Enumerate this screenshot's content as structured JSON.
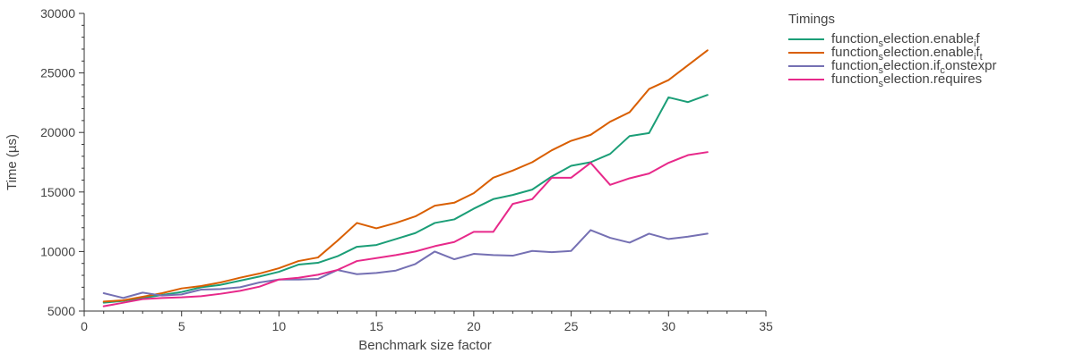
{
  "chart_data": {
    "type": "line",
    "title": "",
    "xlabel": "Benchmark size factor",
    "ylabel": "Time (µs)",
    "xlim": [
      0,
      35
    ],
    "ylim": [
      5000,
      30000
    ],
    "xticks": [
      0,
      5,
      10,
      15,
      20,
      25,
      30,
      35
    ],
    "yticks": [
      5000,
      10000,
      15000,
      20000,
      25000,
      30000
    ],
    "grid": false,
    "legend": {
      "title": "Timings",
      "placement": "outside-right"
    },
    "x": [
      1,
      2,
      3,
      4,
      5,
      6,
      7,
      8,
      9,
      10,
      11,
      12,
      13,
      14,
      15,
      16,
      17,
      18,
      19,
      20,
      21,
      22,
      23,
      24,
      25,
      26,
      27,
      28,
      29,
      30,
      31,
      32
    ],
    "series": [
      {
        "name": "function_selection.enable_if",
        "legend_parts": {
          "base": "function",
          "sub1": "s",
          "mid": "election.enable",
          "sub2": "i",
          "tail": "f"
        },
        "color": "#1b9e77",
        "values": [
          5700,
          5850,
          6100,
          6350,
          6600,
          7000,
          7200,
          7550,
          7900,
          8300,
          8900,
          9050,
          9600,
          10400,
          10550,
          11050,
          11550,
          12400,
          12700,
          13600,
          14400,
          14750,
          15200,
          16300,
          17200,
          17500,
          18200,
          19700,
          19950,
          22950,
          22550,
          23150
        ]
      },
      {
        "name": "function_selection.enable_if_t",
        "legend_parts": {
          "base": "function",
          "sub1": "s",
          "mid": "election.enable",
          "sub2": "i",
          "tail": "f",
          "sub3": "t"
        },
        "color": "#d95f02",
        "values": [
          5800,
          5900,
          6200,
          6500,
          6900,
          7100,
          7400,
          7800,
          8150,
          8600,
          9200,
          9500,
          10900,
          12400,
          11950,
          12400,
          12950,
          13850,
          14100,
          14900,
          16200,
          16800,
          17500,
          18500,
          19300,
          19800,
          20900,
          21700,
          23650,
          24400,
          25650,
          26900
        ]
      },
      {
        "name": "function_selection.if_constexpr",
        "legend_parts": {
          "base": "function",
          "sub1": "s",
          "mid": "election.if",
          "sub2": "c",
          "tail": "onstexpr"
        },
        "color": "#7570b3",
        "values": [
          6500,
          6100,
          6550,
          6300,
          6400,
          6800,
          6850,
          7000,
          7400,
          7650,
          7650,
          7700,
          8450,
          8100,
          8200,
          8400,
          8950,
          10000,
          9350,
          9800,
          9700,
          9650,
          10050,
          9950,
          10050,
          11800,
          11150,
          10750,
          11500,
          11050,
          11250,
          11500
        ]
      },
      {
        "name": "function_selection.requires",
        "legend_parts": {
          "base": "function",
          "sub1": "s",
          "mid": "election.requires"
        },
        "color": "#e7298a",
        "values": [
          5400,
          5700,
          6000,
          6100,
          6150,
          6250,
          6450,
          6700,
          7050,
          7650,
          7800,
          8050,
          8450,
          9200,
          9450,
          9700,
          10000,
          10450,
          10800,
          11650,
          11650,
          14000,
          14400,
          16200,
          16200,
          17450,
          15600,
          16150,
          16550,
          17450,
          18100,
          18350
        ]
      }
    ]
  }
}
